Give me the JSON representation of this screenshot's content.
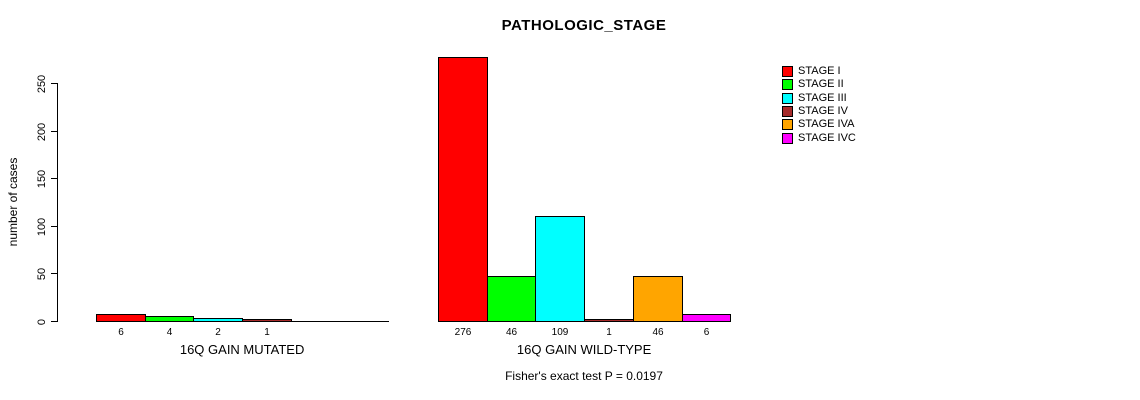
{
  "title": "PATHOLOGIC_STAGE",
  "y_axis": {
    "label": "number of cases",
    "ticks": [
      0,
      50,
      100,
      150,
      200,
      250
    ]
  },
  "x_groups": [
    "16Q GAIN MUTATED",
    "16Q GAIN WILD-TYPE"
  ],
  "footer": "Fisher's exact test P = 0.0197",
  "legend": [
    {
      "label": "STAGE I",
      "color": "#FF0000"
    },
    {
      "label": "STAGE II",
      "color": "#00FF00"
    },
    {
      "label": "STAGE III",
      "color": "#00FFFF"
    },
    {
      "label": "STAGE IV",
      "color": "#A52A2A"
    },
    {
      "label": "STAGE IVA",
      "color": "#FFA500"
    },
    {
      "label": "STAGE IVC",
      "color": "#FF00FF"
    }
  ],
  "chart_data": {
    "type": "bar",
    "title": "PATHOLOGIC_STAGE",
    "xlabel": "",
    "ylabel": "number of cases",
    "ylim": [
      0,
      276
    ],
    "grid": false,
    "legend_position": "right",
    "categories": [
      "STAGE I",
      "STAGE II",
      "STAGE III",
      "STAGE IV",
      "STAGE IVA",
      "STAGE IVC"
    ],
    "colors": [
      "#FF0000",
      "#00FF00",
      "#00FFFF",
      "#A52A2A",
      "#FFA500",
      "#FF00FF"
    ],
    "groups": [
      {
        "label": "16Q GAIN MUTATED",
        "values": [
          6,
          4,
          2,
          1,
          0,
          0
        ]
      },
      {
        "label": "16Q GAIN WILD-TYPE",
        "values": [
          276,
          46,
          109,
          1,
          46,
          6
        ]
      }
    ],
    "zero_value_bars_drawn_as_baseline": true,
    "bar_value_labels_shown_for_nonzero_only": true,
    "annotation": "Fisher's exact test P = 0.0197"
  }
}
